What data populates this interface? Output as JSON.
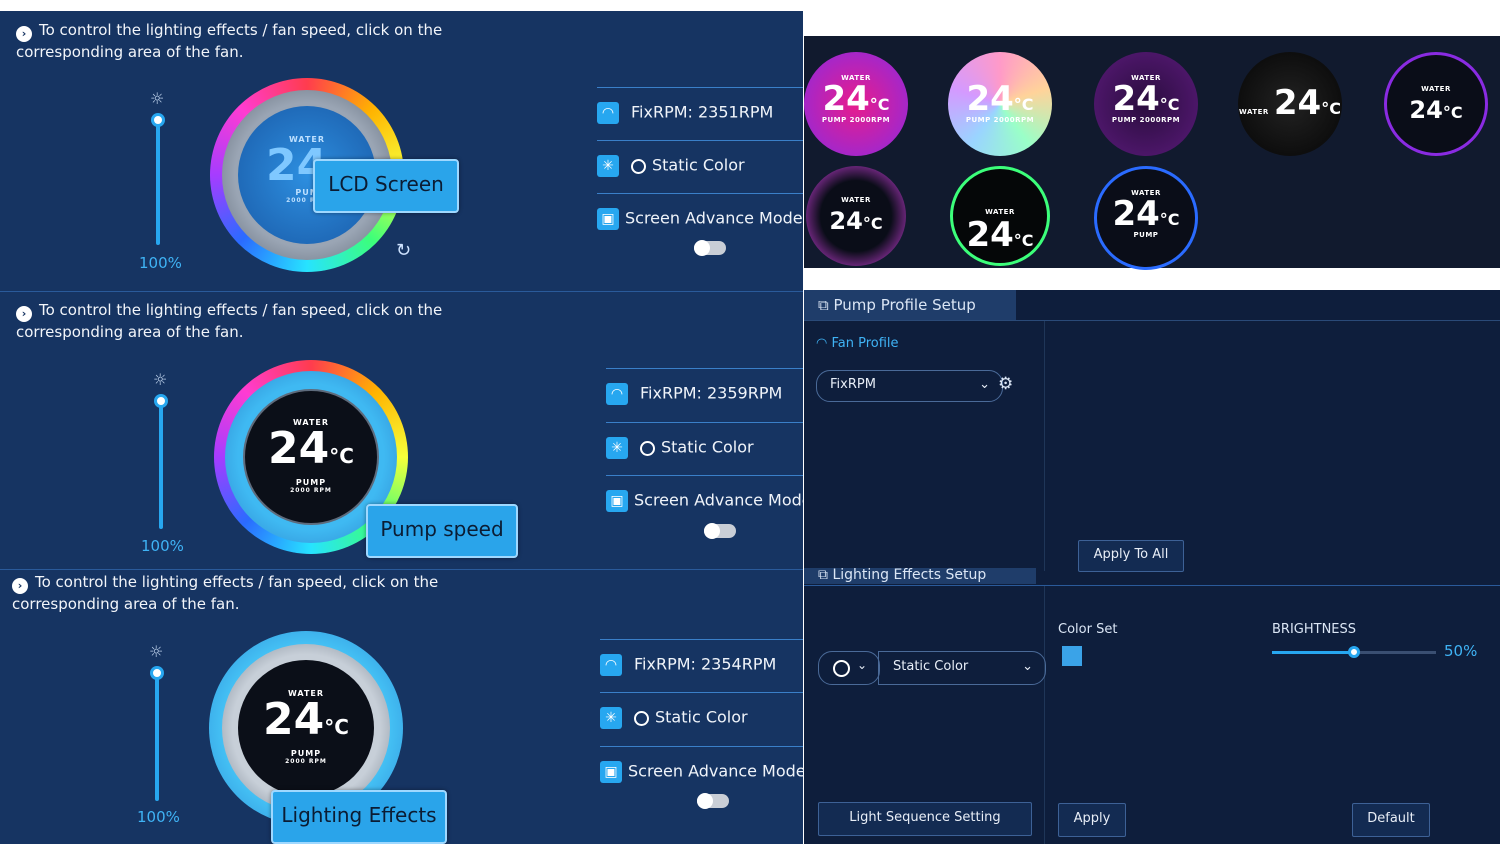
{
  "colors": {
    "panel_bg": "#163462",
    "accent": "#27a7f0",
    "callout_bg": "#2aa4ea",
    "dark_bg": "#0e1e3c"
  },
  "panels": [
    {
      "hint": "To control the lighting effects / fan speed, click on the corresponding area of the fan.",
      "brightness_pct": "100%",
      "fan": {
        "water_label": "WATER",
        "temp": "24",
        "pump_label": "PUM",
        "rpm": "2000 RPM"
      },
      "callout": "LCD Screen",
      "options": {
        "fix_rpm": "FixRPM: 2351RPM",
        "static_color": "Static Color",
        "screen_mode": "Screen Advance Mode"
      }
    },
    {
      "hint": "To control the lighting effects / fan speed, click on the corresponding area of the fan.",
      "brightness_pct": "100%",
      "fan": {
        "water_label": "WATER",
        "temp": "24",
        "unit": "°C",
        "pump_label": "PUMP",
        "rpm": "2000 RPM"
      },
      "callout": "Pump speed",
      "options": {
        "fix_rpm": "FixRPM: 2359RPM",
        "static_color": "Static Color",
        "screen_mode": "Screen Advance Mode"
      }
    },
    {
      "hint": "To control the lighting effects / fan speed, click on the corresponding area of the fan.",
      "brightness_pct": "100%",
      "fan": {
        "water_label": "WATER",
        "temp": "24",
        "unit": "°C",
        "pump_label": "PUMP",
        "rpm": "2000 RPM"
      },
      "callout": "Lighting Effects",
      "options": {
        "fix_rpm": "FixRPM: 2354RPM",
        "static_color": "Static Color",
        "screen_mode": "Screen Advance Mode"
      }
    }
  ],
  "gallery": {
    "unit": "°C",
    "temp": "24",
    "water": "WATER",
    "pump": "PUMP",
    "rpm_text": "PUMP 2000RPM"
  },
  "pump_profile": {
    "tab_label": "Pump Profile Setup",
    "fan_profile_label": "Fan Profile",
    "selected_profile": "FixRPM",
    "apply_all": "Apply To All"
  },
  "lighting": {
    "tab_label": "Lighting Effects Setup",
    "effect": "Static Color",
    "color_set_label": "Color Set",
    "brightness_label": "BRIGHTNESS",
    "brightness_value": "50%",
    "brightness_level": 0.5,
    "swatch_color": "#3aa3e8",
    "light_sequence": "Light Sequence Setting",
    "apply": "Apply",
    "default": "Default"
  }
}
